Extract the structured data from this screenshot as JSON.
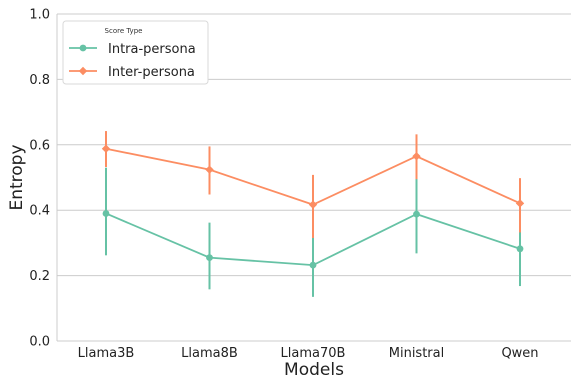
{
  "chart_data": {
    "type": "line",
    "title": "",
    "xlabel": "Models",
    "ylabel": "Entropy",
    "categories": [
      "Llama3B",
      "Llama8B",
      "Llama70B",
      "Ministral",
      "Qwen"
    ],
    "ylim": [
      0.0,
      1.0
    ],
    "yticks": [
      "0.0",
      "0.2",
      "0.4",
      "0.6",
      "0.8",
      "1.0"
    ],
    "grid": "horizontal",
    "legend": {
      "title": "Score Type",
      "placement": "top-left"
    },
    "series": [
      {
        "name": "Intra-persona",
        "color": "#66c2a5",
        "marker": "circle",
        "values": [
          0.39,
          0.255,
          0.232,
          0.388,
          0.282
        ],
        "err_low": [
          0.262,
          0.158,
          0.135,
          0.268,
          0.168
        ],
        "err_high": [
          0.53,
          0.362,
          0.325,
          0.518,
          0.405
        ]
      },
      {
        "name": "Inter-persona",
        "color": "#fc8d62",
        "marker": "diamond",
        "values": [
          0.588,
          0.524,
          0.417,
          0.565,
          0.421
        ],
        "err_low": [
          0.532,
          0.448,
          0.315,
          0.495,
          0.332
        ],
        "err_high": [
          0.642,
          0.595,
          0.508,
          0.632,
          0.498
        ]
      }
    ]
  }
}
